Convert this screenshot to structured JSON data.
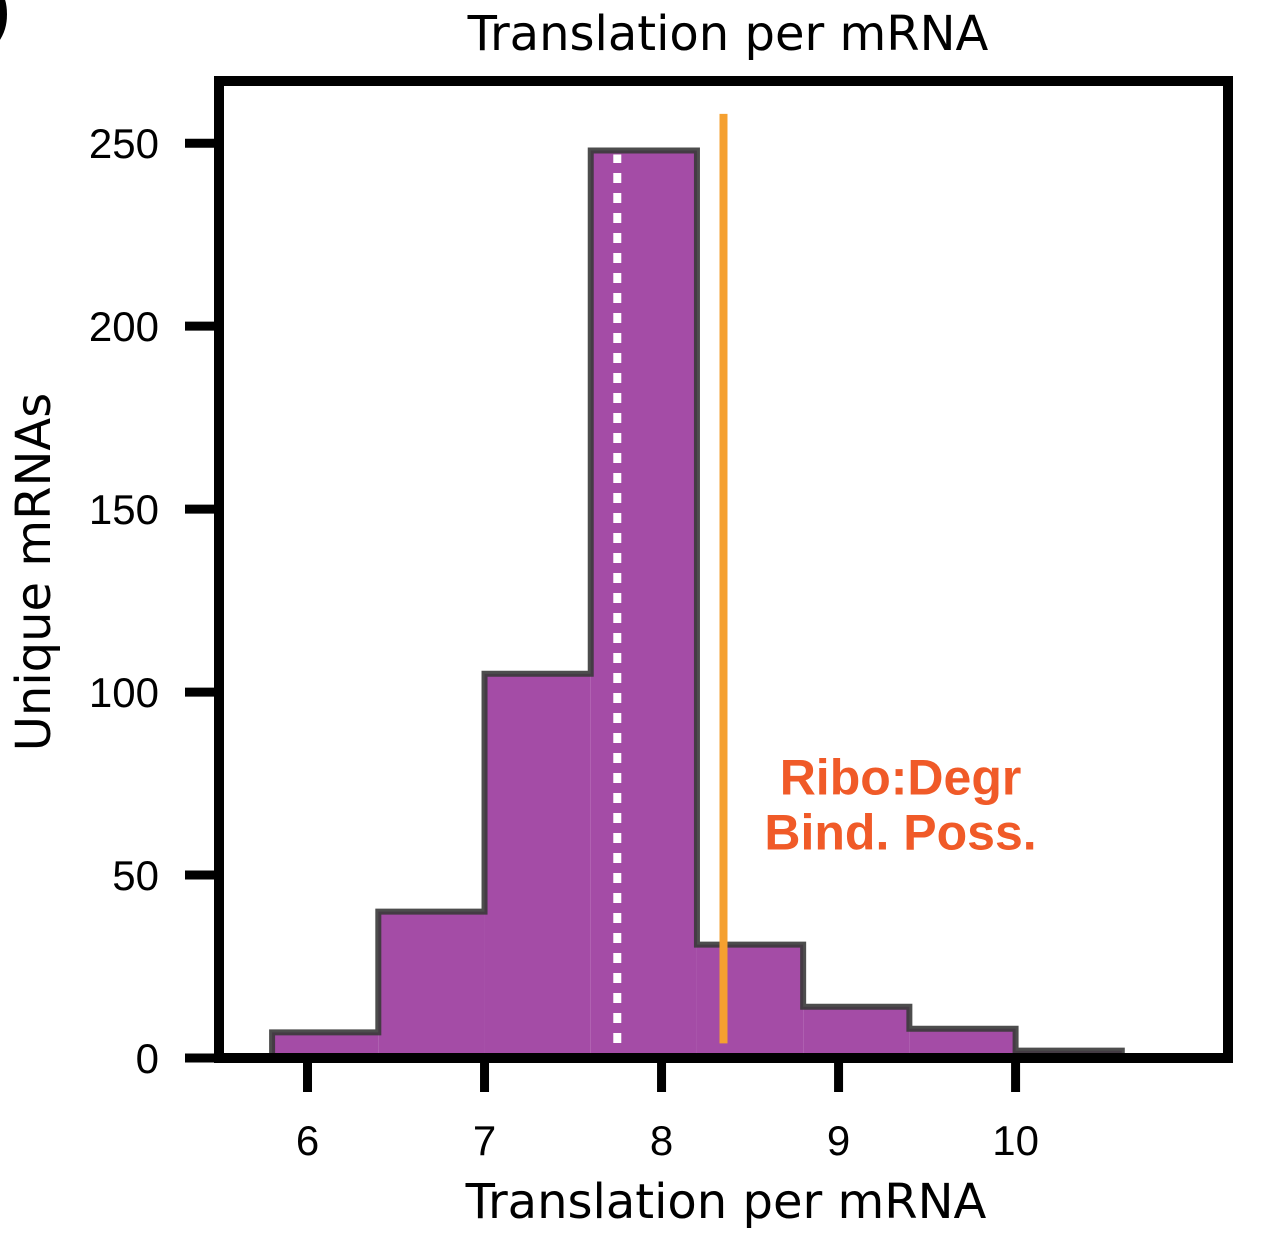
{
  "chart_data": {
    "type": "histogram",
    "title": "Translation per mRNA",
    "xlabel": "Translation per mRNA",
    "ylabel": "Unique mRNAs",
    "xlim": [
      5.5,
      11.2
    ],
    "ylim": [
      0,
      267
    ],
    "x_ticks": [
      6,
      7,
      8,
      9,
      10
    ],
    "y_ticks": [
      0,
      50,
      100,
      150,
      200,
      250
    ],
    "bin_edges": [
      5.8,
      6.4,
      7.0,
      7.6,
      8.2,
      8.8,
      9.4,
      10.0,
      10.6
    ],
    "values": [
      7,
      40,
      105,
      248,
      31,
      14,
      8,
      2
    ],
    "bar_color": "#a44ca6",
    "bar_edge_color": "#3a3a3a",
    "median_x": 7.75,
    "median_line_color": "#ffffff",
    "median_line_style": "dotted",
    "reference_x": 8.35,
    "reference_line_color": "#f5a030",
    "reference_line_y_range": [
      4,
      258
    ],
    "annotation": {
      "lines": [
        "Ribo:Degr",
        "Bind. Poss."
      ],
      "x": 9.35,
      "y": [
        72,
        57
      ],
      "color": "#f05a28"
    },
    "grid": false,
    "legend": "none"
  }
}
